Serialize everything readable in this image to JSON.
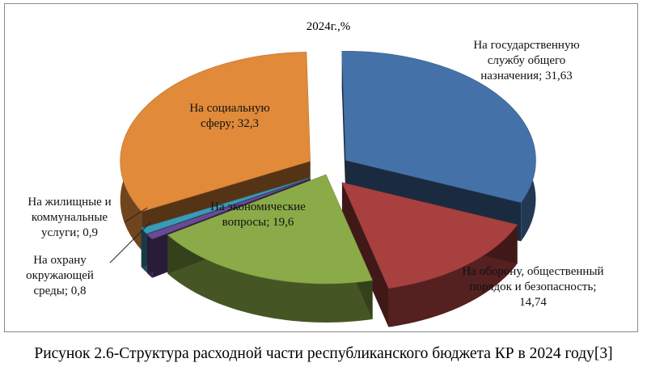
{
  "caption": "Рисунок 2.6-Структура расходной части республиканского бюджета КР в 2024 году[3]",
  "chart_data": {
    "type": "pie",
    "title": "2024г.,%",
    "slices": [
      {
        "label": "На государственную службу общего назначения",
        "value": 31.63,
        "value_text": "31,63",
        "color": "#4472a8"
      },
      {
        "label": "На оборону, общественный порядок и безопасность",
        "value": 14.74,
        "value_text": "14,74",
        "color": "#a84040"
      },
      {
        "label": "На экономические вопросы",
        "value": 19.6,
        "value_text": "19,6",
        "color": "#8aab48"
      },
      {
        "label": "На охрану окружающей среды",
        "value": 0.8,
        "value_text": "0,8",
        "color": "#6a4a94"
      },
      {
        "label": "На жилищные и коммунальные услуги",
        "value": 0.9,
        "value_text": "0,9",
        "color": "#3a9ab8"
      },
      {
        "label": "На социальную сферу",
        "value": 32.3,
        "value_text": "32,3",
        "color": "#e08a3a"
      }
    ],
    "display_labels": [
      "На государственную службу общего назначения; 31,63",
      "На оборону, общественный порядок и безопасность; 14,74",
      "На экономические вопросы; 19,6",
      "На охрану окружающей среды; 0,8",
      "На жилищные и коммунальные услуги; 0,9",
      "На социальную сферу; 32,3"
    ],
    "style": "3d-exploded-pie",
    "legend": "none"
  }
}
